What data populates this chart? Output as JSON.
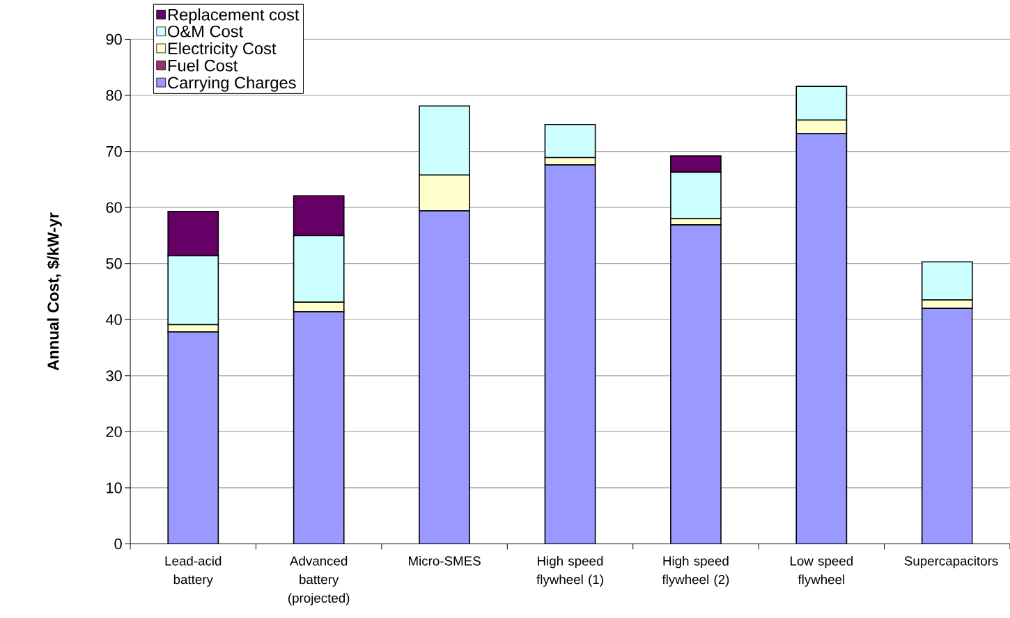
{
  "chart_data": {
    "type": "bar",
    "stacked": true,
    "ylabel": "Annual Cost, $/kW-yr",
    "categories": [
      "Lead-acid battery",
      "Advanced battery (projected)",
      "Micro-SMES",
      "High speed flywheel (1)",
      "High speed flywheel (2)",
      "Low speed flywheel",
      "Supercapacitors"
    ],
    "series": [
      {
        "name": "Carrying Charges",
        "color": "#9999ff",
        "values": [
          37.8,
          41.4,
          59.4,
          67.6,
          56.9,
          73.2,
          42.0
        ]
      },
      {
        "name": "Fuel Cost",
        "color": "#993366",
        "values": [
          0,
          0,
          0,
          0,
          0,
          0,
          0
        ]
      },
      {
        "name": "Electricity Cost",
        "color": "#ffffcc",
        "values": [
          1.3,
          1.7,
          6.4,
          1.3,
          1.1,
          2.4,
          1.5
        ]
      },
      {
        "name": "O&M Cost",
        "color": "#ccffff",
        "values": [
          12.3,
          11.9,
          12.3,
          5.9,
          8.3,
          6.0,
          6.8
        ]
      },
      {
        "name": "Replacement cost",
        "color": "#660066",
        "values": [
          7.9,
          7.1,
          0,
          0,
          2.9,
          0,
          0
        ]
      }
    ],
    "ylim": [
      0,
      90
    ],
    "yticks": [
      0,
      10,
      20,
      30,
      40,
      50,
      60,
      70,
      80,
      90
    ],
    "grid": "y",
    "legend": "top left"
  }
}
